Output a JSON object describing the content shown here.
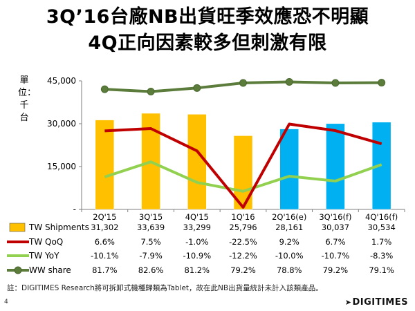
{
  "title_line1": "3Q’16台廠NB出貨旺季效應恐不明顯",
  "title_line2": "4Q正向因素較多但刺激有限",
  "unit_label": "單位：千台",
  "footnote": "註：DIGITIMES Research將可拆卸式機種歸類為Tablet，故在此NB出貨量統計未計入該類產品。",
  "page_number": "4",
  "logo_text": "DIGITIMES",
  "colors": {
    "shipments_actual": "#FFC000",
    "shipments_forecast": "#00B0F0",
    "qoq": "#C00000",
    "yoy": "#92D050",
    "ww_share": "#5B7C3A",
    "axis": "#7F7F7F"
  },
  "chart_data": {
    "type": "bar+line",
    "categories": [
      "2Q'15",
      "3Q'15",
      "4Q'15",
      "1Q'16",
      "2Q'16(e)",
      "3Q'16(f)",
      "4Q'16(f)"
    ],
    "forecast_start_index": 4,
    "y_axis": {
      "ylim": [
        0,
        45000
      ],
      "ticks": [
        0,
        15000,
        30000,
        45000
      ],
      "tick_labels": [
        "-",
        "15,000",
        "30,000",
        "45,000"
      ]
    },
    "series": [
      {
        "name": "TW Shipments",
        "kind": "bar",
        "values": [
          31302,
          33639,
          33299,
          25796,
          28161,
          30037,
          30534
        ],
        "labels": [
          "31,302",
          "33,639",
          "33,299",
          "25,796",
          "28,161",
          "30,037",
          "30,534"
        ]
      },
      {
        "name": "TW QoQ",
        "kind": "line",
        "values": [
          6.6,
          7.5,
          -1.0,
          -22.5,
          9.2,
          6.7,
          1.7
        ],
        "labels": [
          "6.6%",
          "7.5%",
          "-1.0%",
          "-22.5%",
          "9.2%",
          "6.7%",
          "1.7%"
        ]
      },
      {
        "name": "TW YoY",
        "kind": "line",
        "values": [
          -10.1,
          -7.9,
          -10.9,
          -12.2,
          -10.0,
          -10.7,
          -8.3
        ],
        "labels": [
          "-10.1%",
          "-7.9%",
          "-10.9%",
          "-12.2%",
          "-10.0%",
          "-10.7%",
          "-8.3%"
        ]
      },
      {
        "name": "WW share",
        "kind": "line-marker",
        "values": [
          81.7,
          82.6,
          81.2,
          79.2,
          78.8,
          79.2,
          79.1
        ],
        "labels": [
          "81.7%",
          "82.6%",
          "81.2%",
          "79.2%",
          "78.8%",
          "79.2%",
          "79.1%"
        ]
      }
    ]
  }
}
